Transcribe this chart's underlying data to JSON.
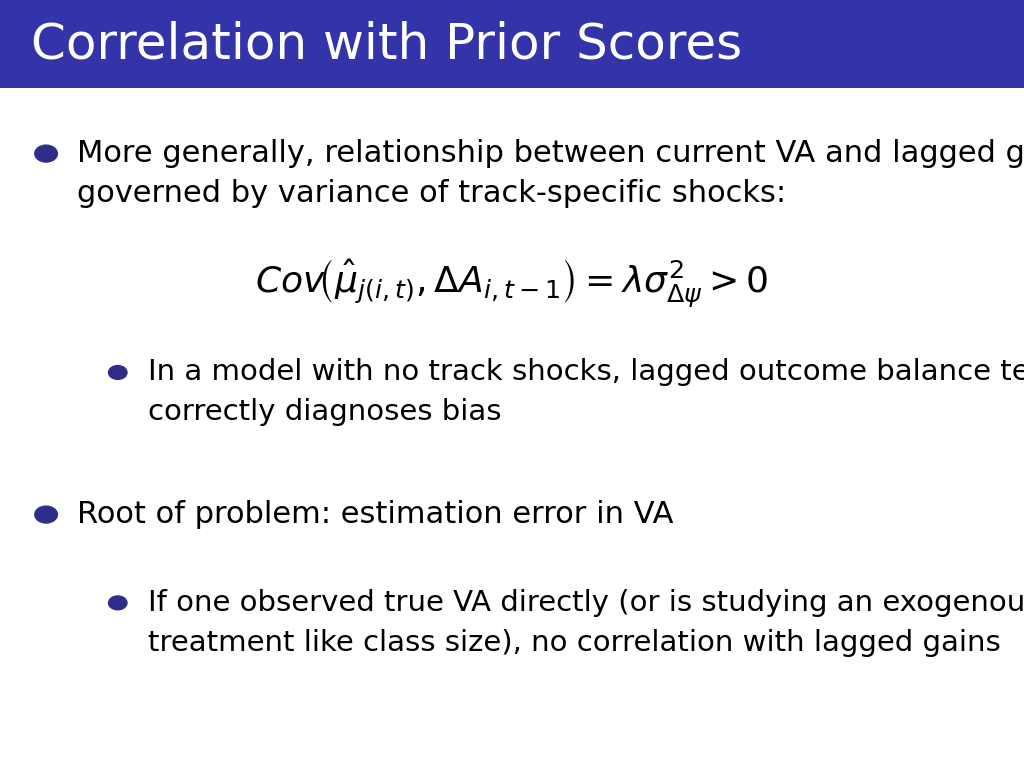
{
  "title": "Correlation with Prior Scores",
  "title_bg_color": "#3333AA",
  "title_text_color": "#FFFFFF",
  "title_fontsize": 36,
  "body_bg_color": "#FFFFFF",
  "bullet_color": "#2E2E8A",
  "bullet1_text_line1": "More generally, relationship between current VA and lagged gains is",
  "bullet1_text_line2": "governed by variance of track-specific shocks:",
  "sub_bullet1_line1": "In a model with no track shocks, lagged outcome balance test",
  "sub_bullet1_line2": "correctly diagnoses bias",
  "bullet2_text": "Root of problem: estimation error in VA",
  "sub_bullet2_line1": "If one observed true VA directly (or is studying an exogenous",
  "sub_bullet2_line2": "treatment like class size), no correlation with lagged gains",
  "main_fontsize": 22,
  "sub_fontsize": 21,
  "eq_fontsize": 26
}
